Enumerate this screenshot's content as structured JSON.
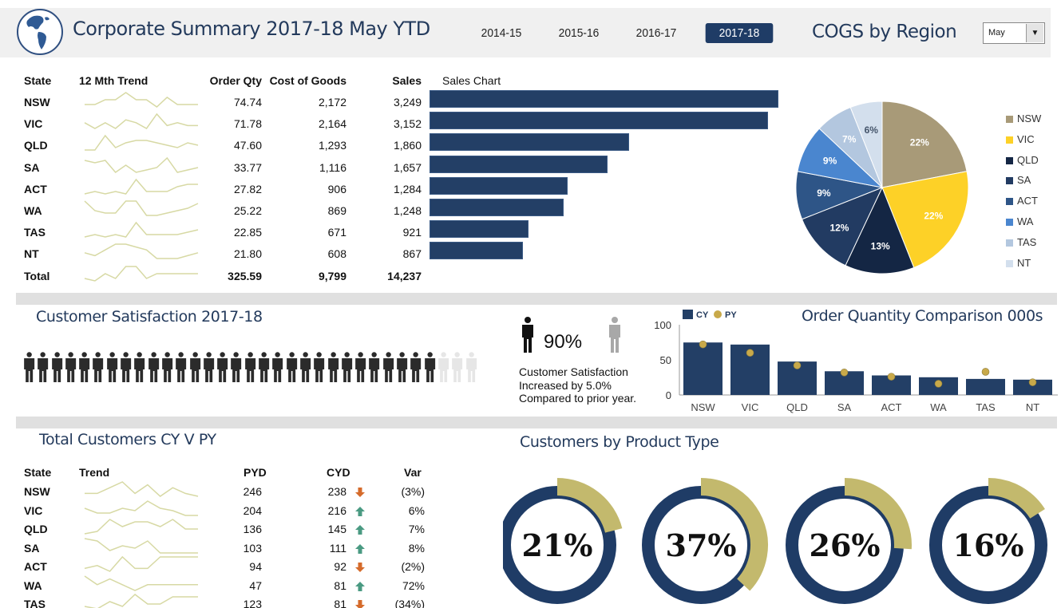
{
  "header": {
    "title": "Corporate Summary 2017-18 May YTD",
    "year_tabs": [
      {
        "label": "2014-15",
        "active": false
      },
      {
        "label": "2015-16",
        "active": false
      },
      {
        "label": "2016-17",
        "active": false
      },
      {
        "label": "2017-18",
        "active": true
      }
    ],
    "cogs_title": "COGS by Region",
    "month_select": {
      "value": "May"
    }
  },
  "summary_table": {
    "headers": {
      "state": "State",
      "trend": "12 Mth Trend",
      "order_qty": "Order Qty",
      "cogs": "Cost of Goods",
      "sales": "Sales",
      "sales_chart": "Sales Chart"
    },
    "rows": [
      {
        "state": "NSW",
        "order_qty": "74.74",
        "cogs": "2,172",
        "sales": "3,249",
        "sales_value": 3249,
        "trend": [
          3,
          3,
          5,
          5,
          8,
          5,
          5,
          2,
          6,
          3,
          3,
          3
        ]
      },
      {
        "state": "VIC",
        "order_qty": "71.78",
        "cogs": "2,164",
        "sales": "3,152",
        "sales_value": 3152,
        "trend": [
          5,
          3,
          5,
          3,
          6,
          5,
          3,
          8,
          4,
          5,
          4,
          4
        ]
      },
      {
        "state": "QLD",
        "order_qty": "47.60",
        "cogs": "1,293",
        "sales": "1,860",
        "sales_value": 1860,
        "trend": [
          2,
          2,
          8,
          3,
          5,
          6,
          6,
          5,
          4,
          3,
          5,
          4
        ]
      },
      {
        "state": "SA",
        "order_qty": "33.77",
        "cogs": "1,116",
        "sales": "1,657",
        "sales_value": 1657,
        "trend": [
          7,
          6,
          7,
          2,
          5,
          2,
          3,
          4,
          8,
          2,
          3,
          4
        ]
      },
      {
        "state": "ACT",
        "order_qty": "27.82",
        "cogs": "906",
        "sales": "1,284",
        "sales_value": 1284,
        "trend": [
          2,
          3,
          2,
          3,
          2,
          8,
          3,
          3,
          3,
          5,
          6,
          6
        ]
      },
      {
        "state": "WA",
        "order_qty": "25.22",
        "cogs": "869",
        "sales": "1,248",
        "sales_value": 1248,
        "trend": [
          8,
          4,
          3,
          3,
          8,
          8,
          2,
          2,
          3,
          4,
          5,
          7
        ]
      },
      {
        "state": "TAS",
        "order_qty": "22.85",
        "cogs": "671",
        "sales": "921",
        "sales_value": 921,
        "trend": [
          2,
          3,
          2,
          3,
          2,
          8,
          3,
          3,
          3,
          3,
          4,
          5
        ]
      },
      {
        "state": "NT",
        "order_qty": "21.80",
        "cogs": "608",
        "sales": "867",
        "sales_value": 867,
        "trend": [
          4,
          3,
          5,
          7,
          7,
          6,
          5,
          2,
          2,
          2,
          3,
          4
        ]
      }
    ],
    "total": {
      "state": "Total",
      "order_qty": "325.59",
      "cogs": "9,799",
      "sales": "14,237",
      "trend": [
        3,
        2,
        5,
        3,
        8,
        8,
        3,
        5,
        5,
        5,
        5,
        5
      ]
    }
  },
  "cogs_pie": {
    "slices": [
      {
        "label": "NSW",
        "pct": 22,
        "color": "#a89a78",
        "label_color": "#ffffff"
      },
      {
        "label": "VIC",
        "pct": 22,
        "color": "#fdd127",
        "label_color": "#ffffff"
      },
      {
        "label": "QLD",
        "pct": 13,
        "color": "#142644",
        "label_color": "#ffffff"
      },
      {
        "label": "SA",
        "pct": 12,
        "color": "#223b62",
        "label_color": "#ffffff"
      },
      {
        "label": "ACT",
        "pct": 9,
        "color": "#2e5587",
        "label_color": "#ffffff"
      },
      {
        "label": "WA",
        "pct": 9,
        "color": "#4a86cf",
        "label_color": "#ffffff"
      },
      {
        "label": "TAS",
        "pct": 7,
        "color": "#b3c7df",
        "label_color": "#ffffff"
      },
      {
        "label": "NT",
        "pct": 6,
        "color": "#d3dfed",
        "label_color": "#44546a"
      }
    ]
  },
  "customer_satisfaction": {
    "title": "Customer Satisfaction 2017-18",
    "icons_total": 33,
    "icons_filled": 30,
    "percent": "90%",
    "note_lines": [
      "Customer Satisfaction",
      "Increased by 5.0%",
      "Compared to prior year."
    ]
  },
  "order_comparison": {
    "title": "Order Quantity Comparison 000s",
    "legend": {
      "cy": "CY",
      "py": "PY"
    }
  },
  "chart_data": [
    {
      "type": "bar",
      "title": "Sales Chart",
      "orientation": "horizontal",
      "categories": [
        "NSW",
        "VIC",
        "QLD",
        "SA",
        "ACT",
        "WA",
        "TAS",
        "NT"
      ],
      "values": [
        3249,
        3152,
        1860,
        1657,
        1284,
        1248,
        921,
        867
      ]
    },
    {
      "type": "pie",
      "title": "COGS by Region",
      "categories": [
        "NSW",
        "VIC",
        "QLD",
        "SA",
        "ACT",
        "WA",
        "TAS",
        "NT"
      ],
      "values": [
        22,
        22,
        13,
        12,
        9,
        9,
        7,
        6
      ],
      "legend": "right"
    },
    {
      "type": "bar",
      "title": "Order Quantity Comparison 000s",
      "categories": [
        "NSW",
        "VIC",
        "QLD",
        "SA",
        "ACT",
        "WA",
        "TAS",
        "NT"
      ],
      "series": [
        {
          "name": "CY",
          "kind": "bar",
          "values": [
            74.74,
            71.78,
            47.6,
            33.77,
            27.82,
            25.22,
            22.85,
            21.8
          ]
        },
        {
          "name": "PY",
          "kind": "marker",
          "values": [
            72,
            60,
            42,
            32,
            26,
            16,
            33,
            18
          ]
        }
      ],
      "yticks": [
        "0",
        "50",
        "100"
      ],
      "ylim": [
        0,
        100
      ],
      "legend": "top-left"
    },
    {
      "type": "pie",
      "title": "Customers by Product Type",
      "subtype": "donut",
      "values": [
        21,
        37,
        26,
        16
      ],
      "labels": [
        "21%",
        "37%",
        "26%",
        "16%"
      ]
    }
  ],
  "total_customers": {
    "title": "Total Customers CY V PY",
    "headers": {
      "state": "State",
      "trend": "Trend",
      "pyd": "PYD",
      "cyd": "CYD",
      "var": "Var"
    },
    "rows": [
      {
        "state": "NSW",
        "pyd": "246",
        "cyd": "238",
        "dir": "down",
        "var": "(3%)",
        "trend": [
          4,
          4,
          6,
          8,
          4,
          7,
          3,
          6,
          4,
          3
        ]
      },
      {
        "state": "VIC",
        "pyd": "204",
        "cyd": "216",
        "dir": "up",
        "var": "6%",
        "trend": [
          6,
          4,
          4,
          6,
          5,
          9,
          6,
          5,
          3,
          3
        ]
      },
      {
        "state": "QLD",
        "pyd": "136",
        "cyd": "145",
        "dir": "up",
        "var": "7%",
        "trend": [
          2,
          3,
          8,
          5,
          7,
          7,
          5,
          8,
          4,
          4
        ]
      },
      {
        "state": "SA",
        "pyd": "103",
        "cyd": "111",
        "dir": "up",
        "var": "8%",
        "trend": [
          8,
          7,
          3,
          5,
          4,
          7,
          2,
          2,
          2,
          2
        ]
      },
      {
        "state": "ACT",
        "pyd": "94",
        "cyd": "92",
        "dir": "down",
        "var": "(2%)",
        "trend": [
          3,
          4,
          2,
          7,
          3,
          3,
          7,
          7,
          7,
          7
        ]
      },
      {
        "state": "WA",
        "pyd": "47",
        "cyd": "81",
        "dir": "up",
        "var": "72%",
        "trend": [
          8,
          5,
          7,
          5,
          3,
          5,
          5,
          5,
          5,
          5
        ]
      },
      {
        "state": "TAS",
        "pyd": "123",
        "cyd": "81",
        "dir": "down",
        "var": "(34%)",
        "trend": [
          3,
          2,
          5,
          3,
          8,
          4,
          4,
          7,
          7,
          7
        ]
      }
    ]
  },
  "product_type": {
    "title": "Customers by Product Type",
    "colors": {
      "filled": "#c3b96d",
      "rest": "#1f3c66"
    }
  },
  "colors": {
    "navy": "#233f66",
    "sparkline": "#d7d9a4",
    "up": "#4a9a82",
    "down": "#d56b2b",
    "py_marker": "#c8a94a"
  }
}
